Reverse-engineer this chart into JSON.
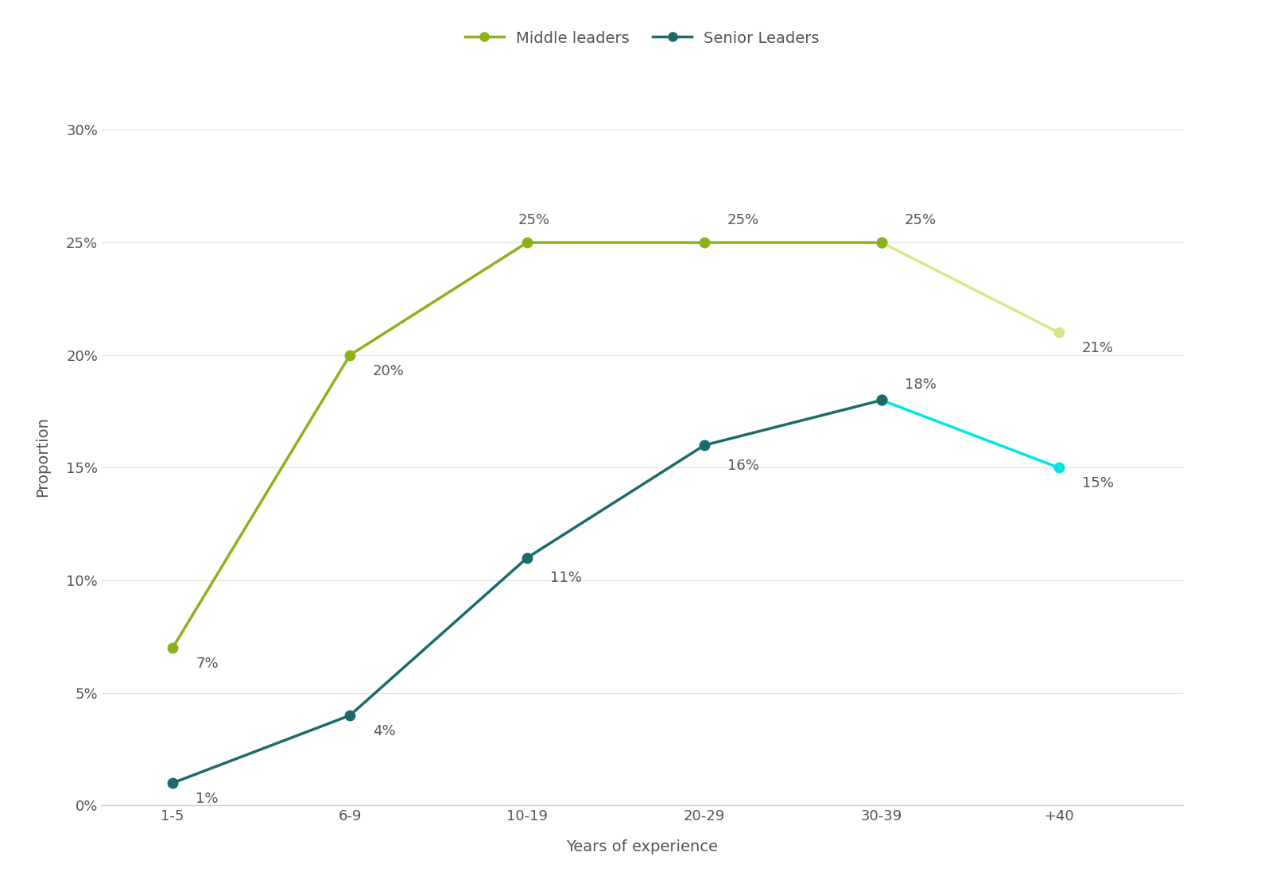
{
  "categories": [
    "1-5",
    "6-9",
    "10-19",
    "20-29",
    "30-39",
    "+40"
  ],
  "middle_leaders": [
    7,
    20,
    25,
    25,
    25,
    21
  ],
  "senior_leaders": [
    1,
    4,
    11,
    16,
    18,
    15
  ],
  "middle_color_main": "#8db218",
  "middle_color_last": "#d4e88a",
  "senior_color_main": "#1a6b6b",
  "senior_color_last": "#00e5e5",
  "xlabel": "Years of experience",
  "ylabel": "Proportion",
  "ylim": [
    0,
    31
  ],
  "yticks": [
    0,
    5,
    10,
    15,
    20,
    25,
    30
  ],
  "legend_middle": "Middle leaders",
  "legend_senior": "Senior Leaders",
  "background_color": "#ffffff",
  "text_color": "#555555",
  "marker_size": 9,
  "line_width": 2.5,
  "annotation_fontsize": 13
}
